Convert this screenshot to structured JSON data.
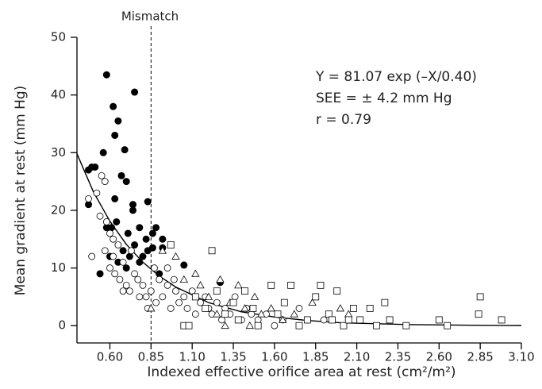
{
  "chart_data": {
    "type": "scatter",
    "xlabel": "Indexed effective orifice area at rest (cm²/m²)",
    "ylabel": "Mean gradient at rest (mm Hg)",
    "annotations": [
      "Y = 81.07 exp (–X/0.40)",
      "SEE = ± 4.2 mm Hg",
      "r = 0.79"
    ],
    "mismatch_line": {
      "x": 0.85,
      "label": "Mismatch"
    },
    "xlim": [
      0.4,
      3.1
    ],
    "ylim": [
      -3,
      50
    ],
    "xticks": [
      {
        "value": 0.6,
        "label": "0.60"
      },
      0.85,
      {
        "value": 1.1,
        "label": "1.10"
      },
      1.35,
      {
        "value": 1.6,
        "label": "1.60"
      },
      1.85,
      {
        "value": 2.1,
        "label": "2.10"
      },
      2.35,
      {
        "value": 2.6,
        "label": "2.60"
      },
      2.85,
      {
        "value": 3.1,
        "label": "3.10"
      }
    ],
    "yticks": [
      0,
      10,
      20,
      30,
      40,
      50
    ],
    "fit_curve": {
      "color": "#000",
      "x": [
        0.4,
        0.5,
        0.6,
        0.7,
        0.8,
        0.9,
        1.0,
        1.2,
        1.4,
        1.6,
        1.8,
        2.0,
        2.4,
        2.8,
        3.1
      ],
      "values": [
        29.8,
        23.2,
        18.1,
        14.1,
        11.0,
        8.6,
        6.7,
        4.0,
        2.4,
        1.5,
        0.9,
        0.5,
        0.2,
        0.07,
        0.03
      ]
    },
    "series": [
      {
        "marker": "filled-circle",
        "color": "#000",
        "x": [
          0.47,
          0.49,
          0.47,
          0.51,
          0.56,
          0.58,
          0.62,
          0.65,
          0.69,
          0.75,
          0.63,
          0.67,
          0.7,
          0.74,
          0.74,
          0.83,
          0.61,
          0.64,
          0.71,
          0.78,
          0.82,
          0.86,
          0.88,
          0.83,
          0.8,
          0.86,
          0.92,
          0.9,
          0.54,
          0.6,
          0.65,
          0.68,
          0.72,
          0.75,
          0.78,
          0.7,
          1.05,
          1.27,
          0.92,
          0.63,
          0.58
        ],
        "values": [
          27,
          27.5,
          21,
          27.5,
          30,
          43.5,
          38,
          35.5,
          30.5,
          40.5,
          33,
          26,
          25,
          21,
          20,
          21.5,
          17,
          18,
          16,
          17,
          15,
          16,
          17,
          13,
          12,
          13.5,
          13.5,
          9,
          9,
          12,
          11,
          13,
          12,
          14,
          11,
          10,
          10.5,
          7.5,
          15,
          22,
          17
        ]
      },
      {
        "marker": "circle",
        "color": "#000",
        "x": [
          0.47,
          0.49,
          0.52,
          0.55,
          0.57,
          0.54,
          0.58,
          0.6,
          0.62,
          0.65,
          0.57,
          0.6,
          0.63,
          0.66,
          0.68,
          0.7,
          0.72,
          0.75,
          0.77,
          0.8,
          0.82,
          0.85,
          0.88,
          0.9,
          0.92,
          0.95,
          0.97,
          1.0,
          1.02,
          1.05,
          1.07,
          1.1,
          1.12,
          1.15,
          1.18,
          1.2,
          1.22,
          1.25,
          1.28,
          1.3,
          1.33,
          1.36,
          1.4,
          1.43,
          1.46,
          1.5,
          1.55,
          1.6,
          1.65,
          1.75,
          1.8,
          1.9,
          0.62,
          0.73,
          0.78,
          0.87,
          0.95,
          0.99,
          0.68,
          0.83
        ],
        "values": [
          22,
          12,
          23,
          26,
          25,
          19,
          18,
          16,
          15,
          14,
          13,
          10,
          9,
          8,
          11,
          7,
          6,
          9,
          8,
          7,
          5,
          6,
          4,
          8,
          5,
          7,
          3,
          6,
          4,
          5,
          3,
          6,
          2,
          4,
          5,
          3,
          2,
          4,
          1,
          3,
          2,
          5,
          1,
          3,
          2,
          1,
          2,
          0,
          1,
          3,
          1,
          1,
          12,
          13,
          5,
          10,
          10,
          8,
          6,
          3
        ]
      },
      {
        "marker": "triangle",
        "color": "#000",
        "x": [
          0.85,
          0.92,
          1.0,
          1.05,
          1.15,
          1.2,
          1.27,
          1.33,
          1.38,
          1.42,
          1.48,
          1.52,
          1.58,
          1.65,
          1.72,
          1.83,
          2.0,
          2.05,
          1.3,
          1.12,
          1.25,
          1.45
        ],
        "values": [
          3,
          13,
          12,
          8,
          7,
          5,
          8,
          4,
          7,
          3,
          5,
          2,
          3,
          1,
          2,
          4,
          3,
          2,
          0,
          9,
          2,
          0
        ]
      },
      {
        "marker": "square",
        "color": "#000",
        "x": [
          0.97,
          1.05,
          1.08,
          1.12,
          1.18,
          1.22,
          1.25,
          1.3,
          1.35,
          1.38,
          1.42,
          1.47,
          1.5,
          1.58,
          1.62,
          1.66,
          1.7,
          1.75,
          1.8,
          1.85,
          1.88,
          1.93,
          1.98,
          2.02,
          2.08,
          2.12,
          2.18,
          2.22,
          2.27,
          2.3,
          2.4,
          2.6,
          2.65,
          2.85,
          2.84,
          2.98,
          1.95,
          2.05
        ],
        "values": [
          14,
          0,
          0,
          5,
          3,
          13,
          6,
          2,
          4,
          1,
          6,
          3,
          0,
          7,
          2,
          4,
          7,
          0,
          1,
          5,
          7,
          2,
          6,
          0,
          3,
          1,
          3,
          0,
          4,
          1,
          0,
          1,
          0,
          5,
          2,
          1,
          1,
          1
        ]
      }
    ]
  }
}
